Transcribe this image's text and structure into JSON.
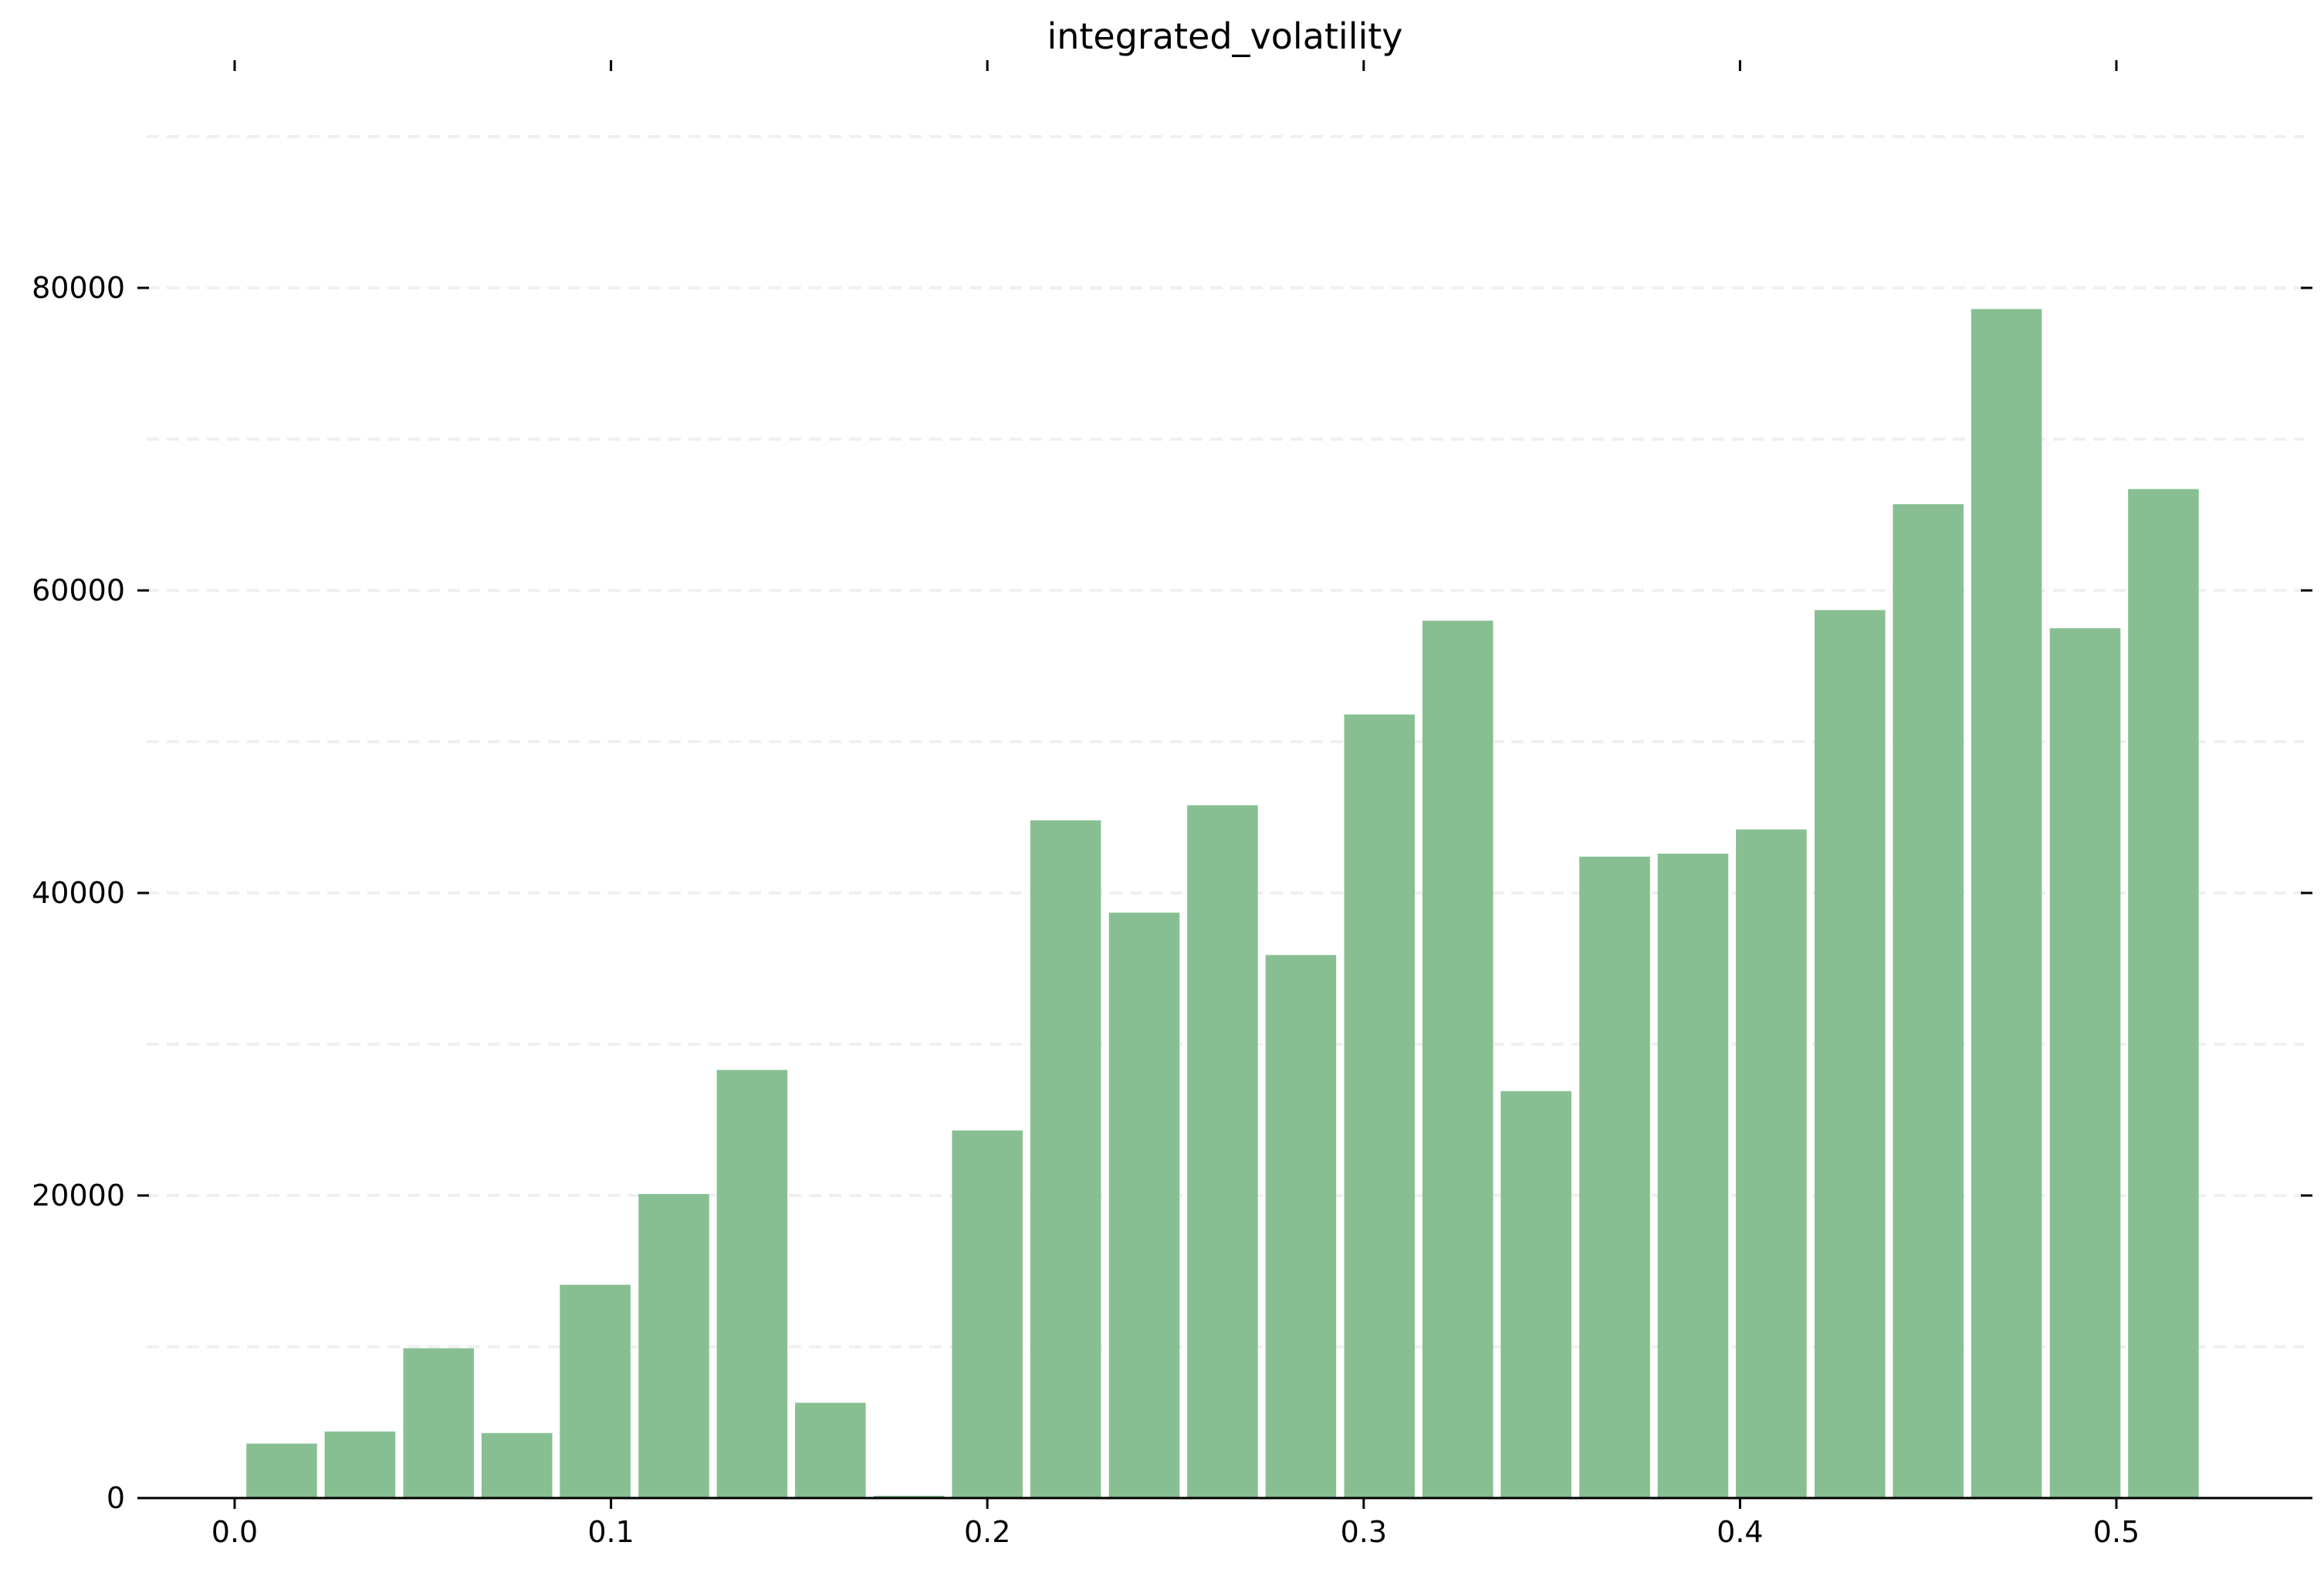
{
  "chart_data": {
    "type": "bar",
    "title": "integrated_volatility",
    "xlabel": "",
    "ylabel": "",
    "bin_width": 0.02083,
    "bins": [
      {
        "x": 0.0125,
        "value": 3600
      },
      {
        "x": 0.0333,
        "value": 4400
      },
      {
        "x": 0.0542,
        "value": 9900
      },
      {
        "x": 0.075,
        "value": 4300
      },
      {
        "x": 0.0958,
        "value": 14100
      },
      {
        "x": 0.1167,
        "value": 20100
      },
      {
        "x": 0.1375,
        "value": 28300
      },
      {
        "x": 0.1583,
        "value": 6300
      },
      {
        "x": 0.1792,
        "value": 150
      },
      {
        "x": 0.2,
        "value": 24300
      },
      {
        "x": 0.2208,
        "value": 44800
      },
      {
        "x": 0.2417,
        "value": 38700
      },
      {
        "x": 0.2625,
        "value": 45800
      },
      {
        "x": 0.2833,
        "value": 35900
      },
      {
        "x": 0.3042,
        "value": 51800
      },
      {
        "x": 0.325,
        "value": 58000
      },
      {
        "x": 0.3458,
        "value": 26900
      },
      {
        "x": 0.3667,
        "value": 42400
      },
      {
        "x": 0.3875,
        "value": 42600
      },
      {
        "x": 0.4083,
        "value": 44200
      },
      {
        "x": 0.4292,
        "value": 58700
      },
      {
        "x": 0.45,
        "value": 65700
      },
      {
        "x": 0.4708,
        "value": 78600
      },
      {
        "x": 0.4917,
        "value": 57500
      },
      {
        "x": 0.5125,
        "value": 66700
      }
    ],
    "xlim": [
      -0.026,
      0.552
    ],
    "ylim": [
      0,
      90000
    ],
    "x_ticks": [
      "0.0",
      "0.1",
      "0.2",
      "0.3",
      "0.4",
      "0.5"
    ],
    "x_tick_values": [
      0.0,
      0.1,
      0.2,
      0.3,
      0.4,
      0.5
    ],
    "y_ticks": [
      "0",
      "20000",
      "40000",
      "60000",
      "80000"
    ],
    "y_tick_values": [
      0,
      20000,
      40000,
      60000,
      80000
    ],
    "gridlines_y": [
      10000,
      20000,
      30000,
      40000,
      50000,
      60000,
      70000,
      80000,
      90000
    ],
    "grid": true,
    "grid_style": "dashed",
    "bar_color": "#88bf92",
    "grid_color": "#f0f0f0",
    "axis_color": "#000000"
  }
}
